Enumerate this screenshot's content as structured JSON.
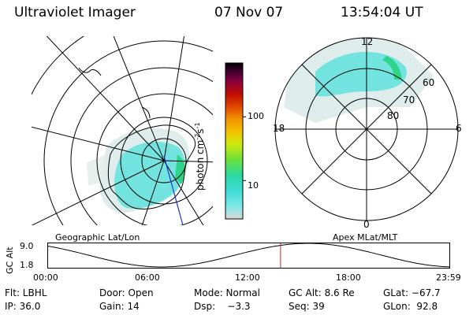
{
  "header": {
    "instrument": "Ultraviolet Imager",
    "date": "07 Nov 07",
    "time": "13:54:04 UT"
  },
  "geo_map": {
    "label": "Geographic Lat/Lon"
  },
  "polar_map": {
    "label": "Apex MLat/MLT",
    "mlt_labels": [
      "12",
      "18",
      "6",
      "0"
    ],
    "mlat_labels": [
      "60",
      "70",
      "80"
    ]
  },
  "colorbar": {
    "unit": "photon cm",
    "unit_sup1": "-2",
    "unit_mid": "s",
    "unit_sup2": "-1",
    "ticks": [
      {
        "value": 100,
        "label": "100"
      },
      {
        "value": 10,
        "label": "10"
      }
    ],
    "min": 2.5,
    "max": 700,
    "scale": "log",
    "colors": [
      "#d8d8d8",
      "#7fe8e6",
      "#3fdcd6",
      "#2ad8a0",
      "#6be23c",
      "#cfe90e",
      "#f3c200",
      "#f29400",
      "#e14600",
      "#c00e00",
      "#8c003e",
      "#3a0030",
      "#000000"
    ]
  },
  "alt_strip": {
    "ylabel": "GC Alt",
    "yticks": [
      "9.0",
      "1.8"
    ],
    "xticks": [
      "00:00",
      "06:00",
      "12:00",
      "18:00",
      "23:59"
    ],
    "current_time_hours": 13.9,
    "line_color": "#000000",
    "marker_color": "#cc2222"
  },
  "info": {
    "row1": [
      {
        "label": "Flt: LBHL"
      },
      {
        "label": "Door: Open"
      },
      {
        "label": "Mode: Normal"
      },
      {
        "label": "GC Alt: 8.6 Re"
      },
      {
        "label": "GLat: −67.7"
      }
    ],
    "row2": [
      {
        "label": "IP: 36.0"
      },
      {
        "label": "Gain: 14"
      },
      {
        "label": "Dsp:    −3.3"
      },
      {
        "label": "Seq: 39"
      },
      {
        "label": "GLon:  92.8"
      }
    ]
  }
}
